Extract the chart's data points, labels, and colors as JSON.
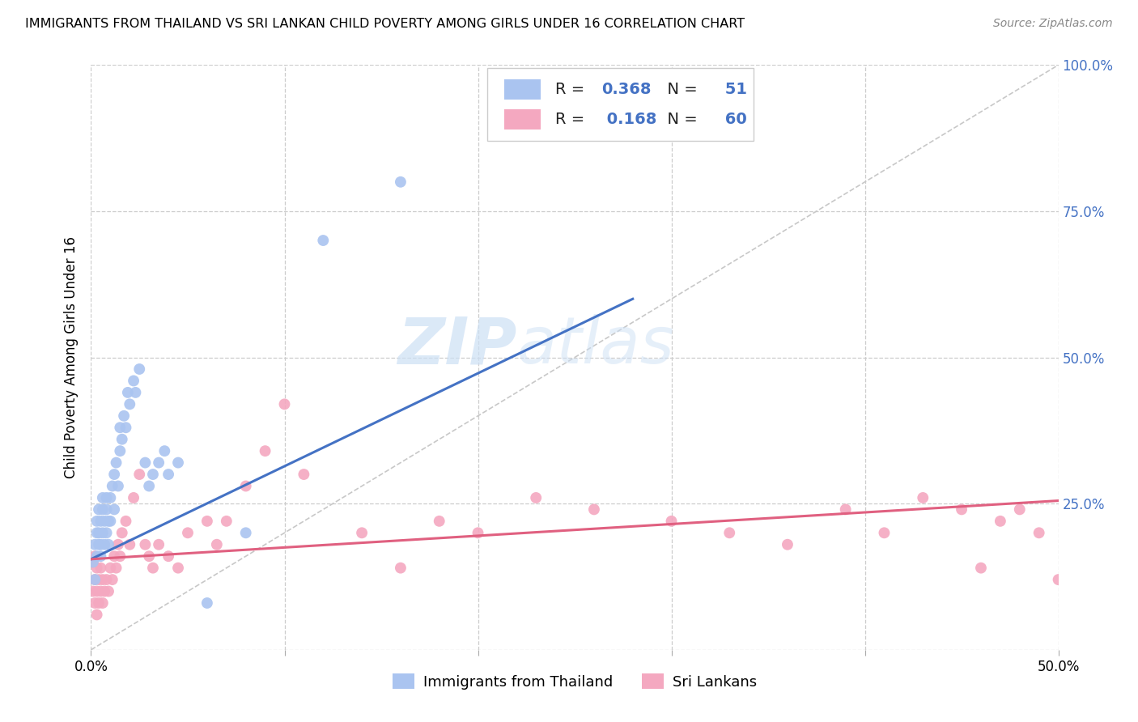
{
  "title": "IMMIGRANTS FROM THAILAND VS SRI LANKAN CHILD POVERTY AMONG GIRLS UNDER 16 CORRELATION CHART",
  "source": "Source: ZipAtlas.com",
  "ylabel": "Child Poverty Among Girls Under 16",
  "xlim": [
    0.0,
    0.5
  ],
  "ylim": [
    0.0,
    1.0
  ],
  "thailand_R": 0.368,
  "thailand_N": 51,
  "srilanka_R": 0.168,
  "srilanka_N": 60,
  "thailand_color": "#aac4f0",
  "thailand_line_color": "#4472c4",
  "srilanka_color": "#f4a8c0",
  "srilanka_line_color": "#e06080",
  "diagonal_color": "#c8c8c8",
  "watermark_zip": "ZIP",
  "watermark_atlas": "atlas",
  "thailand_scatter_x": [
    0.001,
    0.002,
    0.002,
    0.003,
    0.003,
    0.003,
    0.004,
    0.004,
    0.004,
    0.005,
    0.005,
    0.005,
    0.006,
    0.006,
    0.006,
    0.007,
    0.007,
    0.008,
    0.008,
    0.008,
    0.009,
    0.009,
    0.01,
    0.01,
    0.011,
    0.012,
    0.012,
    0.013,
    0.014,
    0.015,
    0.015,
    0.016,
    0.017,
    0.018,
    0.019,
    0.02,
    0.022,
    0.023,
    0.025,
    0.028,
    0.03,
    0.032,
    0.035,
    0.038,
    0.04,
    0.045,
    0.06,
    0.08,
    0.12,
    0.16,
    0.22
  ],
  "thailand_scatter_y": [
    0.15,
    0.12,
    0.18,
    0.2,
    0.16,
    0.22,
    0.18,
    0.24,
    0.2,
    0.16,
    0.22,
    0.18,
    0.24,
    0.2,
    0.26,
    0.22,
    0.18,
    0.24,
    0.2,
    0.26,
    0.22,
    0.18,
    0.26,
    0.22,
    0.28,
    0.3,
    0.24,
    0.32,
    0.28,
    0.34,
    0.38,
    0.36,
    0.4,
    0.38,
    0.44,
    0.42,
    0.46,
    0.44,
    0.48,
    0.32,
    0.28,
    0.3,
    0.32,
    0.34,
    0.3,
    0.32,
    0.08,
    0.2,
    0.7,
    0.8,
    0.93
  ],
  "srilanka_scatter_x": [
    0.001,
    0.001,
    0.002,
    0.002,
    0.002,
    0.003,
    0.003,
    0.003,
    0.004,
    0.004,
    0.005,
    0.005,
    0.006,
    0.006,
    0.007,
    0.008,
    0.009,
    0.01,
    0.011,
    0.012,
    0.013,
    0.014,
    0.015,
    0.016,
    0.018,
    0.02,
    0.022,
    0.025,
    0.028,
    0.03,
    0.032,
    0.035,
    0.04,
    0.045,
    0.05,
    0.06,
    0.065,
    0.07,
    0.08,
    0.09,
    0.1,
    0.11,
    0.14,
    0.16,
    0.18,
    0.2,
    0.23,
    0.26,
    0.3,
    0.33,
    0.36,
    0.39,
    0.41,
    0.43,
    0.45,
    0.46,
    0.47,
    0.48,
    0.49,
    0.5
  ],
  "srilanka_scatter_y": [
    0.1,
    0.15,
    0.08,
    0.12,
    0.16,
    0.06,
    0.1,
    0.14,
    0.08,
    0.12,
    0.1,
    0.14,
    0.08,
    0.12,
    0.1,
    0.12,
    0.1,
    0.14,
    0.12,
    0.16,
    0.14,
    0.18,
    0.16,
    0.2,
    0.22,
    0.18,
    0.26,
    0.3,
    0.18,
    0.16,
    0.14,
    0.18,
    0.16,
    0.14,
    0.2,
    0.22,
    0.18,
    0.22,
    0.28,
    0.34,
    0.42,
    0.3,
    0.2,
    0.14,
    0.22,
    0.2,
    0.26,
    0.24,
    0.22,
    0.2,
    0.18,
    0.24,
    0.2,
    0.26,
    0.24,
    0.14,
    0.22,
    0.24,
    0.2,
    0.12
  ],
  "th_line_x0": 0.0,
  "th_line_y0": 0.155,
  "th_line_x1": 0.28,
  "th_line_y1": 0.6,
  "sl_line_x0": 0.0,
  "sl_line_y0": 0.155,
  "sl_line_x1": 0.5,
  "sl_line_y1": 0.255
}
